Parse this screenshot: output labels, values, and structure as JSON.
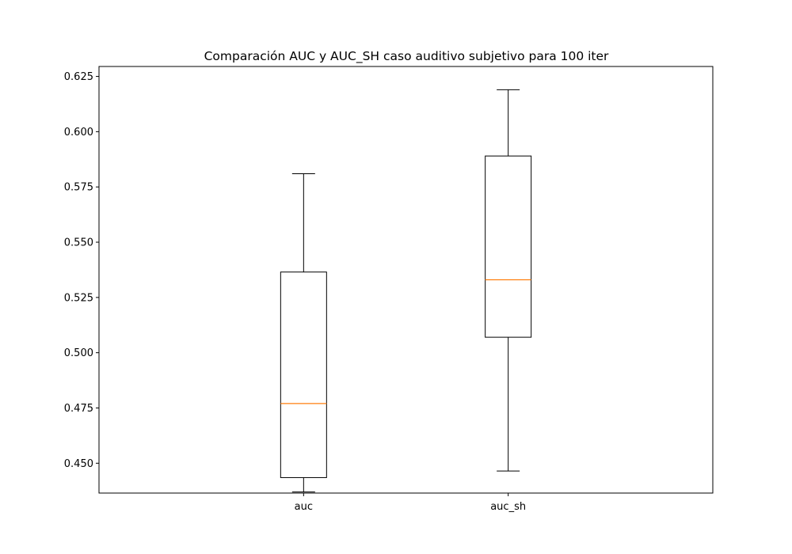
{
  "chart_data": {
    "type": "box",
    "title": "Comparación AUC y AUC_SH caso auditivo subjetivo para 100 iter",
    "xlabel": "",
    "ylabel": "",
    "categories": [
      "auc",
      "auc_sh"
    ],
    "ylim": [
      0.4365,
      0.6295
    ],
    "yticks": [
      0.45,
      0.475,
      0.5,
      0.525,
      0.55,
      0.575,
      0.6,
      0.625
    ],
    "ytick_labels": [
      "0.450",
      "0.475",
      "0.500",
      "0.525",
      "0.550",
      "0.575",
      "0.600",
      "0.625"
    ],
    "boxes": [
      {
        "category": "auc",
        "whisker_low": 0.437,
        "q1": 0.4435,
        "median": 0.477,
        "q3": 0.5365,
        "whisker_high": 0.581
      },
      {
        "category": "auc_sh",
        "whisker_low": 0.4465,
        "q1": 0.507,
        "median": 0.533,
        "q3": 0.589,
        "whisker_high": 0.619
      }
    ],
    "grid": false,
    "colors": {
      "box": "#000000",
      "median": "#ff7f0e"
    }
  }
}
